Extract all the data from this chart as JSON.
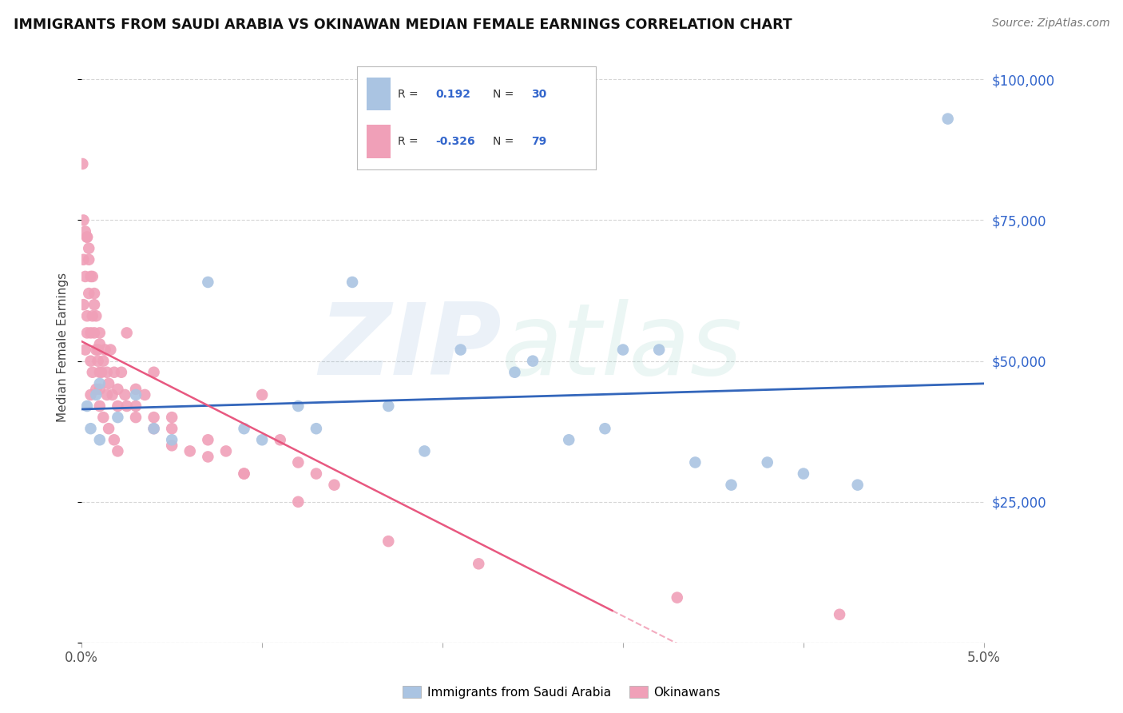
{
  "title": "IMMIGRANTS FROM SAUDI ARABIA VS OKINAWAN MEDIAN FEMALE EARNINGS CORRELATION CHART",
  "source": "Source: ZipAtlas.com",
  "ylabel": "Median Female Earnings",
  "yticks": [
    0,
    25000,
    50000,
    75000,
    100000
  ],
  "ytick_labels": [
    "",
    "$25,000",
    "$50,000",
    "$75,000",
    "$100,000"
  ],
  "xlim": [
    0.0,
    0.05
  ],
  "ylim": [
    0,
    105000
  ],
  "blue_R": 0.192,
  "blue_N": 30,
  "pink_R": -0.326,
  "pink_N": 79,
  "blue_color": "#aac4e2",
  "pink_color": "#f0a0b8",
  "blue_line_color": "#3366bb",
  "pink_line_color": "#e85880",
  "legend_label_blue": "Immigrants from Saudi Arabia",
  "legend_label_pink": "Okinawans",
  "blue_x": [
    0.0003,
    0.0005,
    0.0008,
    0.001,
    0.001,
    0.002,
    0.003,
    0.004,
    0.005,
    0.007,
    0.009,
    0.01,
    0.012,
    0.013,
    0.015,
    0.017,
    0.019,
    0.021,
    0.024,
    0.025,
    0.027,
    0.029,
    0.03,
    0.032,
    0.034,
    0.036,
    0.038,
    0.04,
    0.043,
    0.048
  ],
  "blue_y": [
    42000,
    38000,
    44000,
    46000,
    36000,
    40000,
    44000,
    38000,
    36000,
    64000,
    38000,
    36000,
    42000,
    38000,
    64000,
    42000,
    34000,
    52000,
    48000,
    50000,
    36000,
    38000,
    52000,
    52000,
    32000,
    28000,
    32000,
    30000,
    28000,
    93000
  ],
  "pink_x": [
    5e-05,
    0.0001,
    0.0001,
    0.0002,
    0.0002,
    0.0003,
    0.0003,
    0.0004,
    0.0004,
    0.0005,
    0.0005,
    0.0006,
    0.0007,
    0.0007,
    0.0008,
    0.0009,
    0.001,
    0.001,
    0.001,
    0.001,
    0.0012,
    0.0013,
    0.0014,
    0.0015,
    0.0016,
    0.0017,
    0.0018,
    0.002,
    0.002,
    0.0022,
    0.0024,
    0.0025,
    0.003,
    0.003,
    0.0035,
    0.004,
    0.004,
    0.005,
    0.005,
    0.006,
    0.007,
    0.008,
    0.009,
    0.01,
    0.011,
    0.012,
    0.013,
    0.014,
    0.0001,
    0.0002,
    0.0003,
    0.0005,
    0.0005,
    0.0006,
    0.0008,
    0.001,
    0.0012,
    0.0015,
    0.0018,
    0.002,
    0.0008,
    0.0009,
    0.0011,
    0.0014,
    0.0006,
    0.0007,
    0.0004,
    0.0003,
    0.0025,
    0.003,
    0.004,
    0.005,
    0.007,
    0.009,
    0.012,
    0.017,
    0.022,
    0.033,
    0.042
  ],
  "pink_y": [
    85000,
    75000,
    68000,
    73000,
    65000,
    72000,
    58000,
    70000,
    62000,
    65000,
    55000,
    58000,
    55000,
    62000,
    52000,
    50000,
    53000,
    48000,
    55000,
    45000,
    50000,
    52000,
    48000,
    46000,
    52000,
    44000,
    48000,
    45000,
    42000,
    48000,
    44000,
    55000,
    45000,
    42000,
    44000,
    40000,
    48000,
    40000,
    38000,
    34000,
    36000,
    34000,
    30000,
    44000,
    36000,
    32000,
    30000,
    28000,
    60000,
    52000,
    55000,
    50000,
    44000,
    48000,
    45000,
    42000,
    40000,
    38000,
    36000,
    34000,
    58000,
    52000,
    48000,
    44000,
    65000,
    60000,
    68000,
    72000,
    42000,
    40000,
    38000,
    35000,
    33000,
    30000,
    25000,
    18000,
    14000,
    8000,
    5000
  ]
}
